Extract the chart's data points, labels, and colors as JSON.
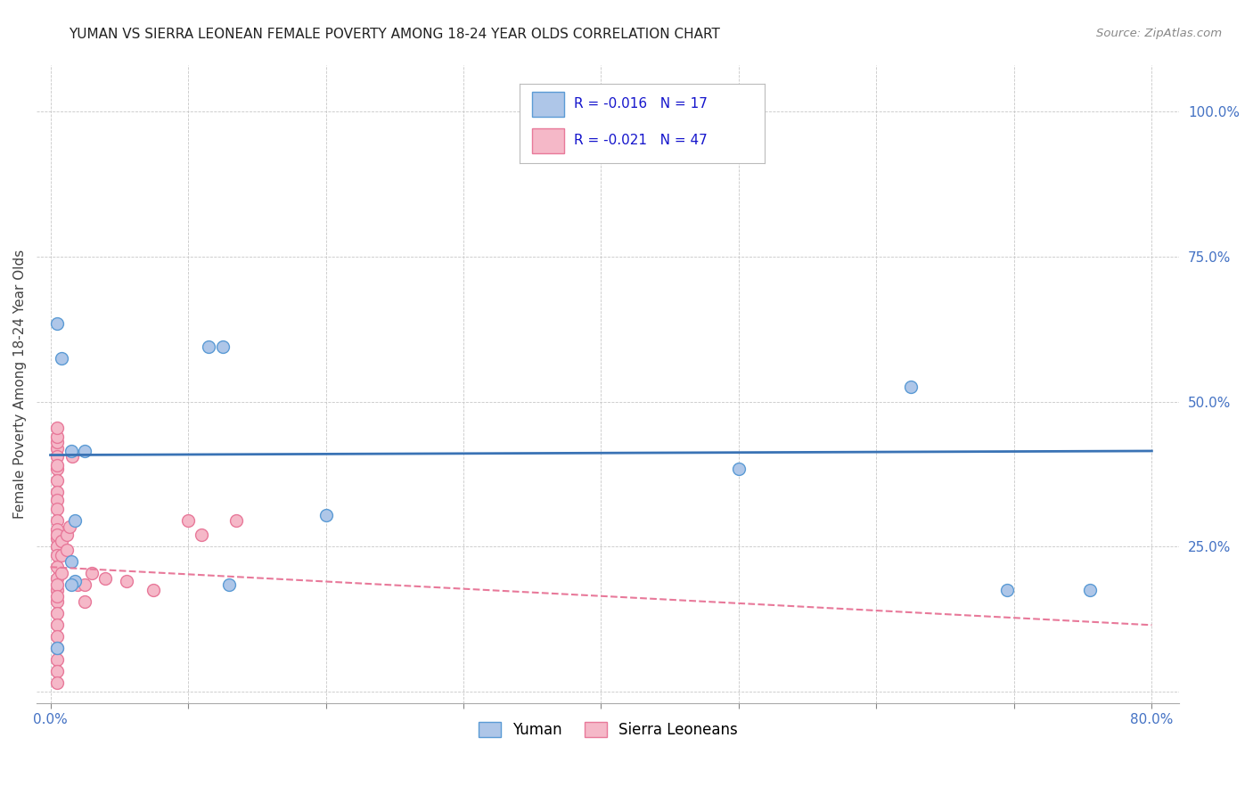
{
  "title": "YUMAN VS SIERRA LEONEAN FEMALE POVERTY AMONG 18-24 YEAR OLDS CORRELATION CHART",
  "source": "Source: ZipAtlas.com",
  "ylabel": "Female Poverty Among 18-24 Year Olds",
  "xlim": [
    -0.01,
    0.82
  ],
  "ylim": [
    -0.02,
    1.08
  ],
  "xticks": [
    0.0,
    0.1,
    0.2,
    0.3,
    0.4,
    0.5,
    0.6,
    0.7,
    0.8
  ],
  "xticklabels": [
    "0.0%",
    "",
    "",
    "",
    "",
    "",
    "",
    "",
    "80.0%"
  ],
  "yticks": [
    0.0,
    0.25,
    0.5,
    0.75,
    1.0
  ],
  "yticklabels": [
    "",
    "25.0%",
    "50.0%",
    "75.0%",
    "100.0%"
  ],
  "background_color": "#ffffff",
  "grid_color": "#c8c8c8",
  "yuman_x": [
    0.005,
    0.008,
    0.115,
    0.125,
    0.625,
    0.5,
    0.018,
    0.2,
    0.695,
    0.755,
    0.005,
    0.015,
    0.015,
    0.025,
    0.018,
    0.015,
    0.13
  ],
  "yuman_y": [
    0.635,
    0.575,
    0.595,
    0.595,
    0.525,
    0.385,
    0.295,
    0.305,
    0.175,
    0.175,
    0.075,
    0.225,
    0.415,
    0.415,
    0.19,
    0.185,
    0.185
  ],
  "sierra_x": [
    0.005,
    0.005,
    0.005,
    0.005,
    0.005,
    0.005,
    0.005,
    0.005,
    0.005,
    0.005,
    0.005,
    0.005,
    0.005,
    0.005,
    0.005,
    0.005,
    0.005,
    0.005,
    0.005,
    0.005,
    0.005,
    0.005,
    0.005,
    0.005,
    0.005,
    0.005,
    0.005,
    0.008,
    0.008,
    0.008,
    0.012,
    0.012,
    0.014,
    0.016,
    0.02,
    0.025,
    0.025,
    0.03,
    0.04,
    0.055,
    0.075,
    0.1,
    0.11,
    0.135,
    0.005,
    0.005,
    0.005
  ],
  "sierra_y": [
    0.42,
    0.405,
    0.385,
    0.365,
    0.345,
    0.33,
    0.315,
    0.295,
    0.28,
    0.265,
    0.25,
    0.235,
    0.215,
    0.195,
    0.175,
    0.155,
    0.135,
    0.115,
    0.095,
    0.075,
    0.055,
    0.035,
    0.015,
    0.43,
    0.44,
    0.455,
    0.27,
    0.26,
    0.235,
    0.205,
    0.27,
    0.245,
    0.285,
    0.405,
    0.185,
    0.185,
    0.155,
    0.205,
    0.195,
    0.19,
    0.175,
    0.295,
    0.27,
    0.295,
    0.39,
    0.185,
    0.165
  ],
  "yuman_color": "#aec6e8",
  "sierra_color": "#f5b8c8",
  "yuman_edge_color": "#5b9bd5",
  "sierra_edge_color": "#e8799a",
  "yuman_trend_y_start": 0.408,
  "yuman_trend_y_end": 0.415,
  "sierra_trend_y_start": 0.215,
  "sierra_trend_y_end": 0.115,
  "yuman_R": "-0.016",
  "yuman_N": "17",
  "sierra_R": "-0.021",
  "sierra_N": "47",
  "legend_yuman": "Yuman",
  "legend_sierra": "Sierra Leoneans",
  "marker_size": 100,
  "title_fontsize": 11,
  "tick_fontsize": 11,
  "ylabel_fontsize": 11
}
